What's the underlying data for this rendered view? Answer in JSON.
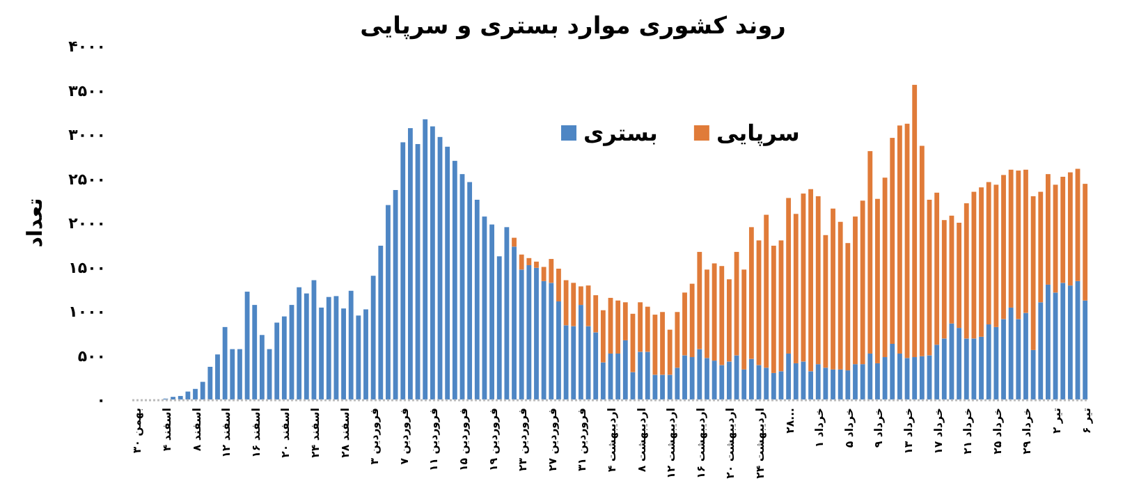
{
  "chart_data": {
    "type": "bar",
    "title": "روند کشوری موارد بستری و سرپایی",
    "ylabel": "تعداد",
    "stacked": true,
    "grid": false,
    "legend": "top right",
    "ylim": [
      0,
      4000
    ],
    "yticks": [
      {
        "value": 0,
        "label": "۰"
      },
      {
        "value": 500,
        "label": "۵۰۰"
      },
      {
        "value": 1000,
        "label": "۱۰۰۰"
      },
      {
        "value": 1500,
        "label": "۱۵۰۰"
      },
      {
        "value": 2000,
        "label": "۲۰۰۰"
      },
      {
        "value": 2500,
        "label": "۲۵۰۰"
      },
      {
        "value": 3000,
        "label": "۳۰۰۰"
      },
      {
        "value": 3500,
        "label": "۳۵۰۰"
      },
      {
        "value": 4000,
        "label": "۴۰۰۰"
      }
    ],
    "categories": [
      "۳۰ بهمن",
      null,
      null,
      null,
      "۴ اسفند",
      null,
      null,
      null,
      "۸ اسفند",
      null,
      null,
      null,
      "۱۲ اسفند",
      null,
      null,
      null,
      "۱۶ اسفند",
      null,
      null,
      null,
      "۲۰ اسفند",
      null,
      null,
      null,
      "۲۴ اسفند",
      null,
      null,
      null,
      "۲۸ اسفند",
      null,
      null,
      null,
      "۳ فروردین",
      null,
      null,
      null,
      "۷ فروردین",
      null,
      null,
      null,
      "۱۱ فروردین",
      null,
      null,
      null,
      "۱۵ فروردین",
      null,
      null,
      null,
      "۱۹ فروردین",
      null,
      null,
      null,
      "۲۳ فروردین",
      null,
      null,
      null,
      "۲۷ فروردین",
      null,
      null,
      null,
      "۳۱ فروردین",
      null,
      null,
      null,
      "۴ اردیبهشت",
      null,
      null,
      null,
      "۸ اردیبهشت",
      null,
      null,
      null,
      "۱۲ اردیبهشت",
      null,
      null,
      null,
      "۱۶ اردیبهشت",
      null,
      null,
      null,
      "۲۰ اردیبهشت",
      null,
      null,
      null,
      "۲۴ اردیبهشت",
      null,
      null,
      null,
      "۲۸...",
      null,
      null,
      null,
      "۱ خرداد",
      null,
      null,
      null,
      "۵ خرداد",
      null,
      null,
      null,
      "۹ خرداد",
      null,
      null,
      null,
      "۱۳ خرداد",
      null,
      null,
      null,
      "۱۷ خرداد",
      null,
      null,
      null,
      "۲۱ خرداد",
      null,
      null,
      null,
      "۲۵ خرداد",
      null,
      null,
      null,
      "۲۹ خرداد",
      null,
      null,
      null,
      "۲ تیر",
      null,
      null,
      null,
      "۶ تیر"
    ],
    "series": [
      {
        "name": "بستری",
        "color": "#4e86c4",
        "values": [
          0,
          0,
          0,
          0,
          10,
          30,
          40,
          90,
          120,
          200,
          370,
          510,
          820,
          570,
          570,
          1220,
          1070,
          730,
          570,
          870,
          940,
          1070,
          1270,
          1200,
          1350,
          1040,
          1160,
          1170,
          1030,
          1230,
          950,
          1020,
          1400,
          1740,
          2200,
          2370,
          2910,
          3070,
          2890,
          3170,
          3090,
          2970,
          2860,
          2700,
          2550,
          2460,
          2260,
          2070,
          1980,
          1620,
          1950,
          1730,
          1470,
          1520,
          1490,
          1340,
          1320,
          1110,
          840,
          830,
          1070,
          830,
          760,
          420,
          520,
          520,
          670,
          310,
          540,
          540,
          280,
          280,
          280,
          360,
          500,
          480,
          570,
          470,
          440,
          390,
          430,
          500,
          340,
          460,
          390,
          360,
          300,
          320,
          520,
          410,
          430,
          320,
          400,
          360,
          340,
          340,
          330,
          400,
          400,
          520,
          410,
          480,
          630,
          520,
          470,
          480,
          490,
          500,
          620,
          690,
          860,
          810,
          690,
          690,
          710,
          850,
          820,
          910,
          1040,
          910,
          980,
          560,
          1100,
          1300,
          1210,
          1320,
          1290,
          1340,
          1120
        ]
      },
      {
        "name": "سرپایی",
        "color": "#e07b39",
        "values": [
          null,
          null,
          null,
          null,
          null,
          null,
          null,
          null,
          null,
          null,
          null,
          null,
          null,
          null,
          null,
          null,
          null,
          null,
          null,
          null,
          null,
          null,
          null,
          null,
          null,
          null,
          null,
          null,
          null,
          null,
          null,
          null,
          null,
          null,
          null,
          null,
          null,
          null,
          null,
          null,
          null,
          null,
          null,
          null,
          null,
          null,
          null,
          null,
          null,
          null,
          null,
          100,
          170,
          80,
          70,
          160,
          270,
          370,
          510,
          490,
          210,
          460,
          420,
          590,
          630,
          600,
          430,
          660,
          560,
          510,
          680,
          710,
          510,
          630,
          710,
          830,
          1100,
          1000,
          1100,
          1120,
          930,
          1170,
          1130,
          1490,
          1410,
          1730,
          1440,
          1480,
          1760,
          1690,
          1900,
          2060,
          1900,
          1500,
          1820,
          1670,
          1440,
          1670,
          1850,
          2290,
          1860,
          2030,
          2330,
          2580,
          2650,
          3080,
          2380,
          1760,
          1720,
          1340,
          1220,
          1190,
          1530,
          1660,
          1690,
          1610,
          1610,
          1630,
          1560,
          1680,
          1620,
          1740,
          1250,
          1250,
          1220,
          1200,
          1280,
          1270,
          1320
        ]
      }
    ]
  }
}
